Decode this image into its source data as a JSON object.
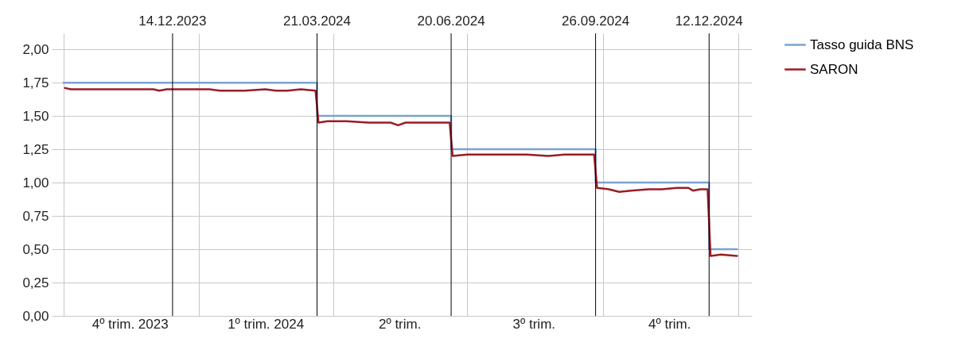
{
  "chart_data": {
    "type": "line",
    "xlim": [
      "2023-09-23",
      "2025-01-10"
    ],
    "ylim": [
      0,
      2.12
    ],
    "yticks": [
      {
        "value": 0,
        "label": "0,00"
      },
      {
        "value": 0.25,
        "label": "0,25"
      },
      {
        "value": 0.5,
        "label": "0,50"
      },
      {
        "value": 0.75,
        "label": "0,75"
      },
      {
        "value": 1,
        "label": "1,00"
      },
      {
        "value": 1.25,
        "label": "1,25"
      },
      {
        "value": 1.5,
        "label": "1,50"
      },
      {
        "value": 1.75,
        "label": "1,75"
      },
      {
        "value": 2,
        "label": "2,00"
      }
    ],
    "xticks": [
      {
        "value": "2023-10-01",
        "label": null
      },
      {
        "value": "2023-11-15",
        "label": "4º trim. 2023"
      },
      {
        "value": "2024-01-01",
        "label": null
      },
      {
        "value": "2024-02-15",
        "label": "1º trim. 2024"
      },
      {
        "value": "2024-04-01",
        "label": null
      },
      {
        "value": "2024-05-16",
        "label": "2º trim."
      },
      {
        "value": "2024-07-01",
        "label": null
      },
      {
        "value": "2024-08-15",
        "label": "3º trim."
      },
      {
        "value": "2024-10-01",
        "label": null
      },
      {
        "value": "2024-11-15",
        "label": "4º trim."
      },
      {
        "value": "2025-01-01",
        "label": null
      }
    ],
    "grid": true,
    "legend": "top right",
    "series": [
      {
        "name": "Tasso guida BNS",
        "type": "step",
        "color": "#7ba3cf",
        "x": [
          "2023-10-01",
          "2024-03-21",
          "2024-06-20",
          "2024-09-26",
          "2024-12-12",
          "2024-12-31"
        ],
        "values": [
          1.75,
          1.5,
          1.25,
          1.0,
          0.5,
          0.5
        ]
      },
      {
        "name": "SARON",
        "type": "line",
        "color": "#9b1c26",
        "x": [
          "2023-10-02",
          "2023-10-06",
          "2023-10-20",
          "2023-11-10",
          "2023-11-20",
          "2023-12-01",
          "2023-12-05",
          "2023-12-10",
          "2023-12-29",
          "2024-01-08",
          "2024-01-15",
          "2024-02-01",
          "2024-02-15",
          "2024-02-22",
          "2024-03-01",
          "2024-03-10",
          "2024-03-20",
          "2024-03-22",
          "2024-03-28",
          "2024-04-10",
          "2024-04-25",
          "2024-05-10",
          "2024-05-15",
          "2024-05-20",
          "2024-06-05",
          "2024-06-19",
          "2024-06-21",
          "2024-07-01",
          "2024-07-20",
          "2024-08-10",
          "2024-08-25",
          "2024-09-05",
          "2024-09-15",
          "2024-09-25",
          "2024-09-27",
          "2024-10-05",
          "2024-10-12",
          "2024-10-20",
          "2024-11-01",
          "2024-11-10",
          "2024-11-20",
          "2024-11-28",
          "2024-12-01",
          "2024-12-06",
          "2024-12-11",
          "2024-12-13",
          "2024-12-20",
          "2024-12-31"
        ],
        "values": [
          1.71,
          1.7,
          1.7,
          1.7,
          1.7,
          1.7,
          1.69,
          1.7,
          1.7,
          1.7,
          1.69,
          1.69,
          1.7,
          1.69,
          1.69,
          1.7,
          1.69,
          1.45,
          1.46,
          1.46,
          1.45,
          1.45,
          1.43,
          1.45,
          1.45,
          1.45,
          1.2,
          1.21,
          1.21,
          1.21,
          1.2,
          1.21,
          1.21,
          1.21,
          0.96,
          0.95,
          0.93,
          0.94,
          0.95,
          0.95,
          0.96,
          0.96,
          0.94,
          0.95,
          0.95,
          0.45,
          0.46,
          0.45
        ]
      }
    ],
    "ref_lines": [
      {
        "axis": "x",
        "value": "2023-12-14",
        "label": "14.12.2023",
        "color": "#000000"
      },
      {
        "axis": "x",
        "value": "2024-03-21",
        "label": "21.03.2024",
        "color": "#000000"
      },
      {
        "axis": "x",
        "value": "2024-06-20",
        "label": "20.06.2024",
        "color": "#000000"
      },
      {
        "axis": "x",
        "value": "2024-09-26",
        "label": "26.09.2024",
        "color": "#000000"
      },
      {
        "axis": "x",
        "value": "2024-12-12",
        "label": "12.12.2024",
        "color": "#000000"
      }
    ]
  }
}
